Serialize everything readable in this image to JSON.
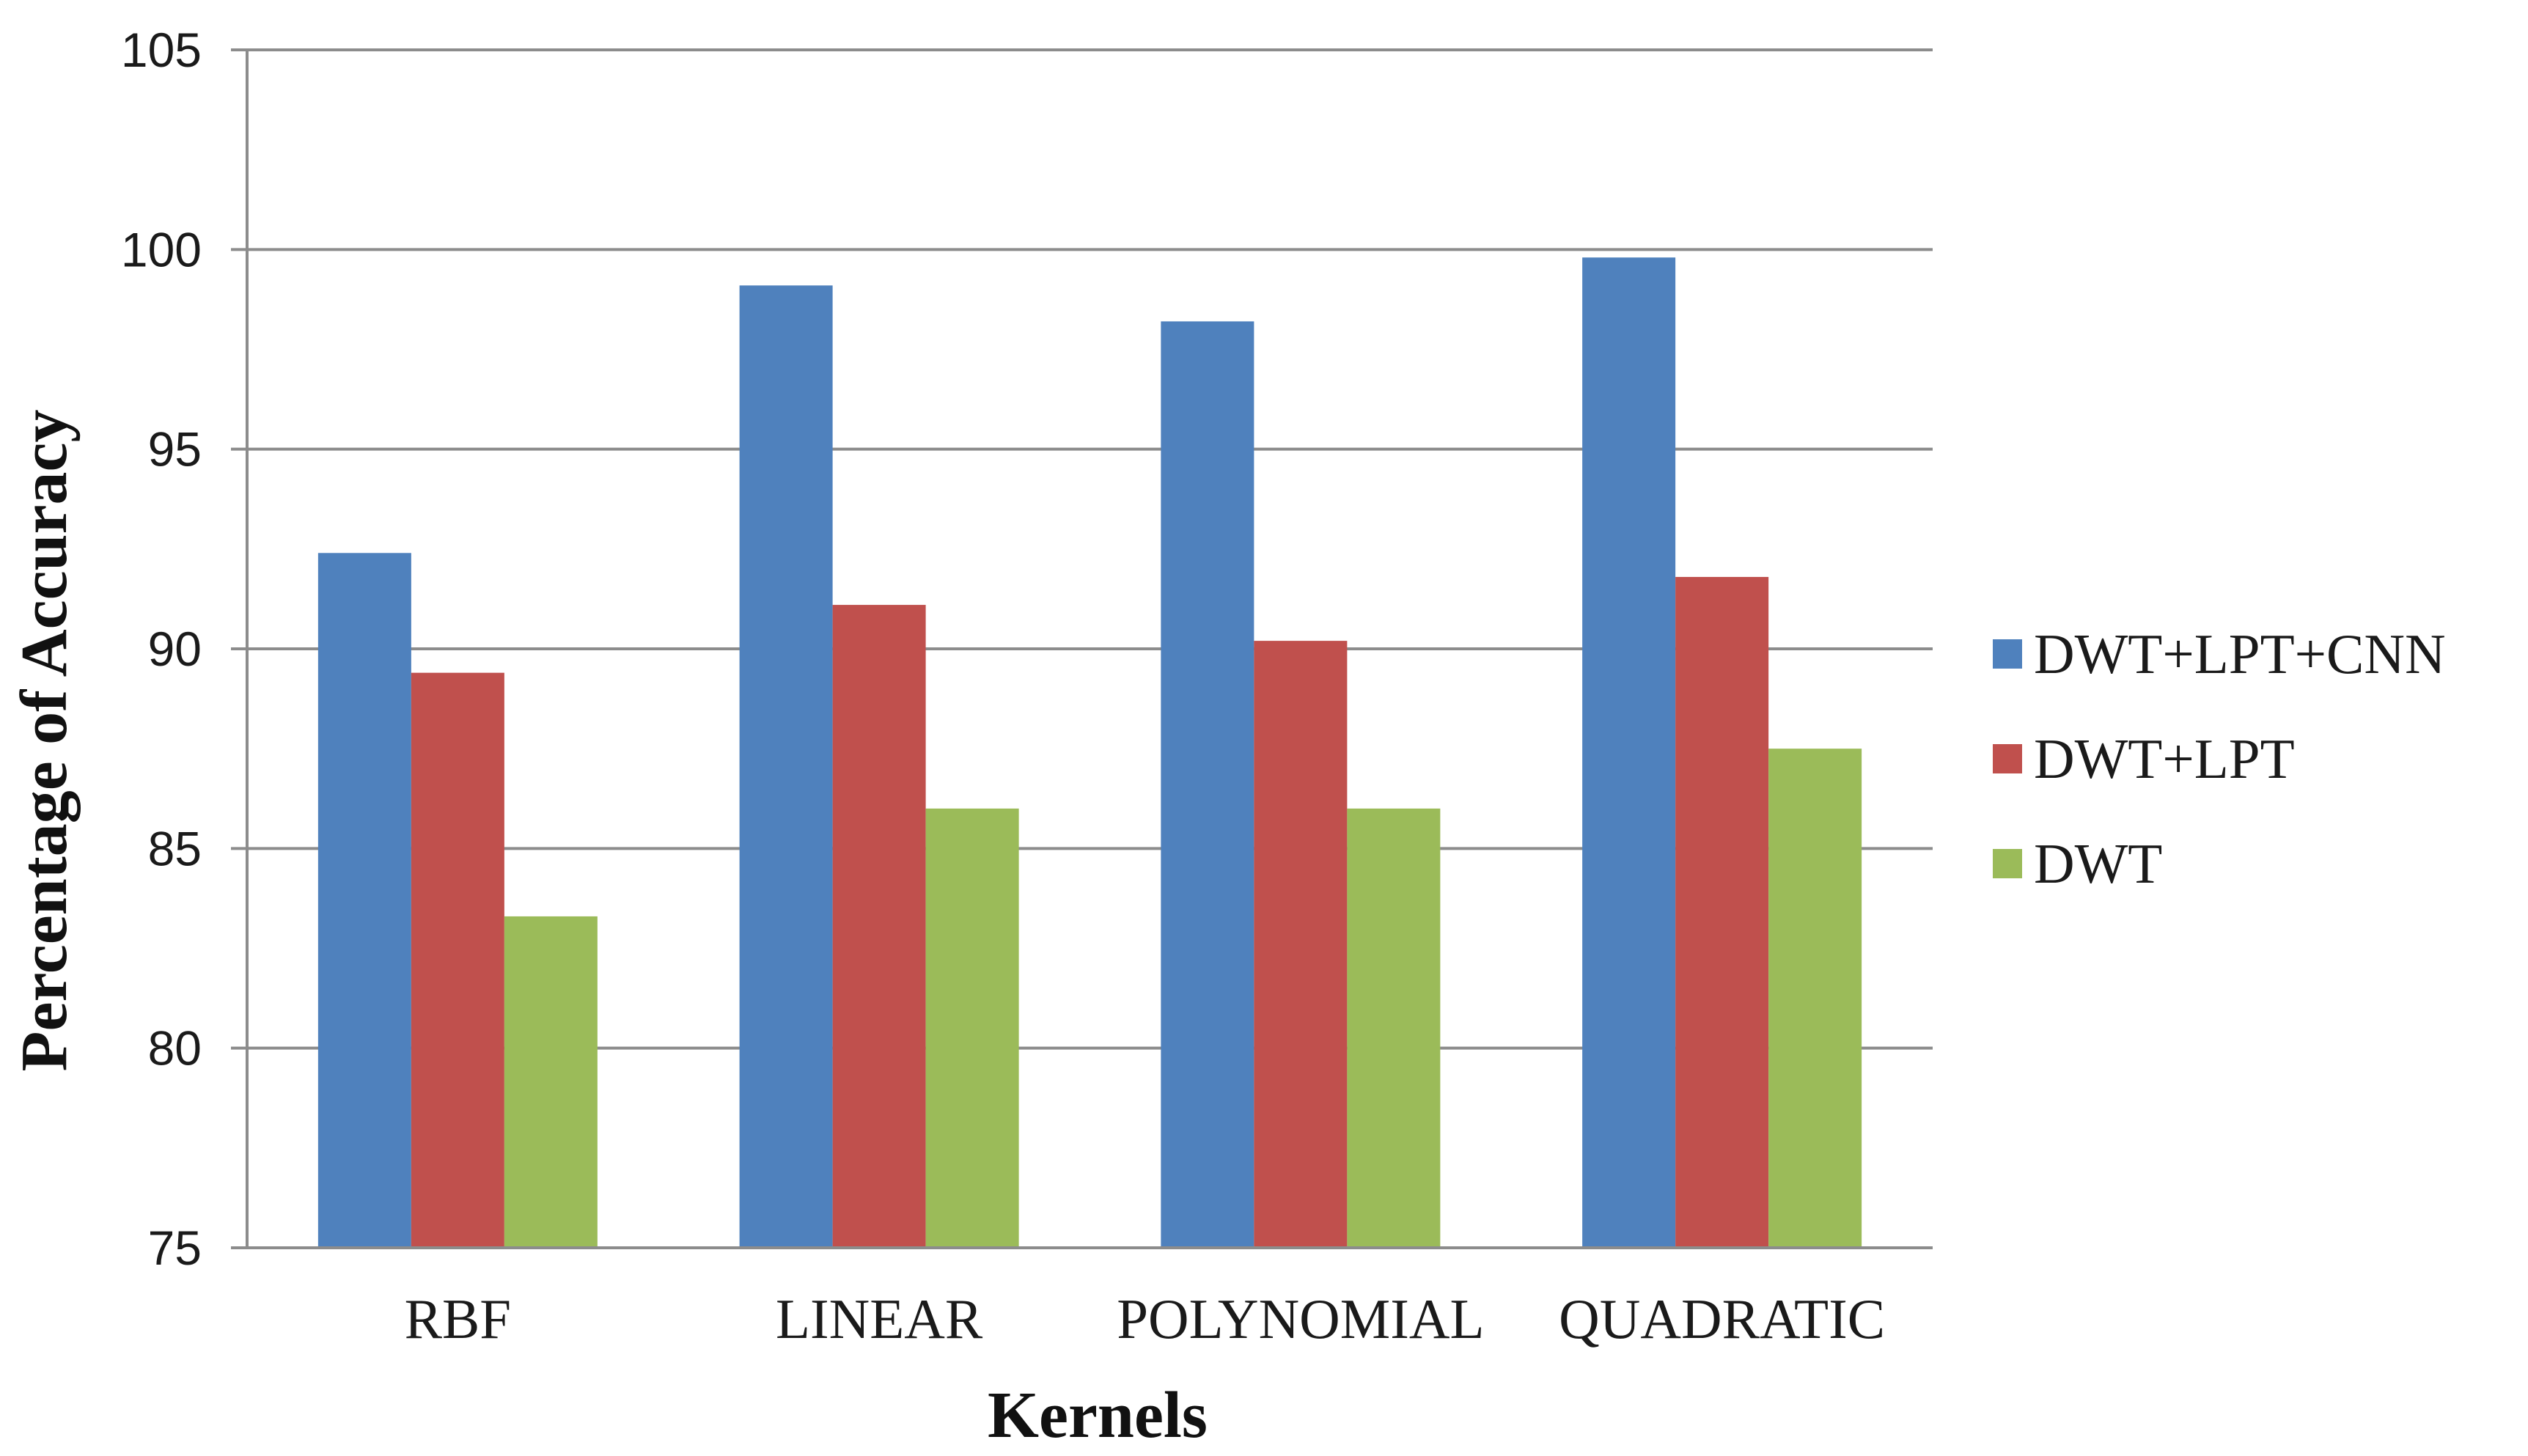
{
  "chart_data": {
    "type": "bar",
    "title": "",
    "xlabel": "Kernels",
    "ylabel": "Percentage of Accuracy",
    "categories": [
      "RBF",
      "LINEAR",
      "POLYNOMIAL",
      "QUADRATIC"
    ],
    "series": [
      {
        "name": "DWT+LPT+CNN",
        "color": "#4F81BD",
        "values": [
          92.4,
          99.1,
          98.2,
          99.8
        ]
      },
      {
        "name": "DWT+LPT",
        "color": "#C0504D",
        "values": [
          89.4,
          91.1,
          90.2,
          91.8
        ]
      },
      {
        "name": "DWT",
        "color": "#9BBB59",
        "values": [
          83.3,
          86.0,
          86.0,
          87.5
        ]
      }
    ],
    "ylim": [
      75,
      105
    ],
    "yticks": [
      "75",
      "80",
      "85",
      "90",
      "95",
      "100",
      "105"
    ],
    "grid": true,
    "legend_position": "right"
  }
}
